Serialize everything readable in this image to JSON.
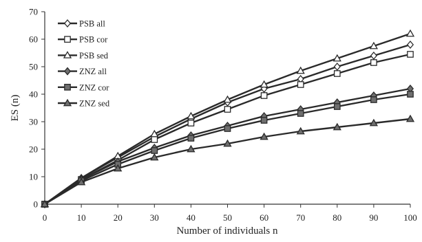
{
  "chart_data": {
    "type": "line",
    "title": "",
    "xlabel": "Number of individuals n",
    "ylabel": "ES (n)",
    "x": [
      0,
      10,
      20,
      30,
      40,
      50,
      60,
      70,
      80,
      90,
      100
    ],
    "xlim": [
      0,
      100
    ],
    "ylim": [
      0,
      70
    ],
    "xticks": [
      0,
      10,
      20,
      30,
      40,
      50,
      60,
      70,
      80,
      90,
      100
    ],
    "yticks": [
      0,
      10,
      20,
      30,
      40,
      50,
      60,
      70
    ],
    "grid": false,
    "legend_position": "top-left",
    "series": [
      {
        "name": "PSB all",
        "marker": "diamond-open",
        "values": [
          0,
          9.5,
          17,
          24.5,
          31,
          37,
          42,
          45.5,
          50,
          54,
          58
        ]
      },
      {
        "name": "PSB cor",
        "marker": "square-open",
        "values": [
          0,
          9,
          16,
          23.5,
          29.5,
          34.5,
          39.5,
          43.5,
          47.5,
          51.5,
          54.5
        ]
      },
      {
        "name": "PSB sed",
        "marker": "triangle-open",
        "values": [
          0,
          9.5,
          17.5,
          25.5,
          32,
          38,
          43.5,
          48.5,
          53,
          57.5,
          62
        ]
      },
      {
        "name": "ZNZ all",
        "marker": "diamond-filled",
        "values": [
          0,
          9,
          15.5,
          20.5,
          25,
          28.5,
          32,
          34.5,
          37,
          39.5,
          42
        ]
      },
      {
        "name": "ZNZ cor",
        "marker": "square-filled",
        "values": [
          0,
          8.5,
          14.5,
          19.5,
          24,
          27.5,
          30.5,
          33,
          35.5,
          38,
          40
        ]
      },
      {
        "name": "ZNZ sed",
        "marker": "triangle-filled",
        "values": [
          0,
          8,
          13,
          17,
          20,
          22,
          24.5,
          26.5,
          28,
          29.5,
          31
        ]
      }
    ]
  }
}
